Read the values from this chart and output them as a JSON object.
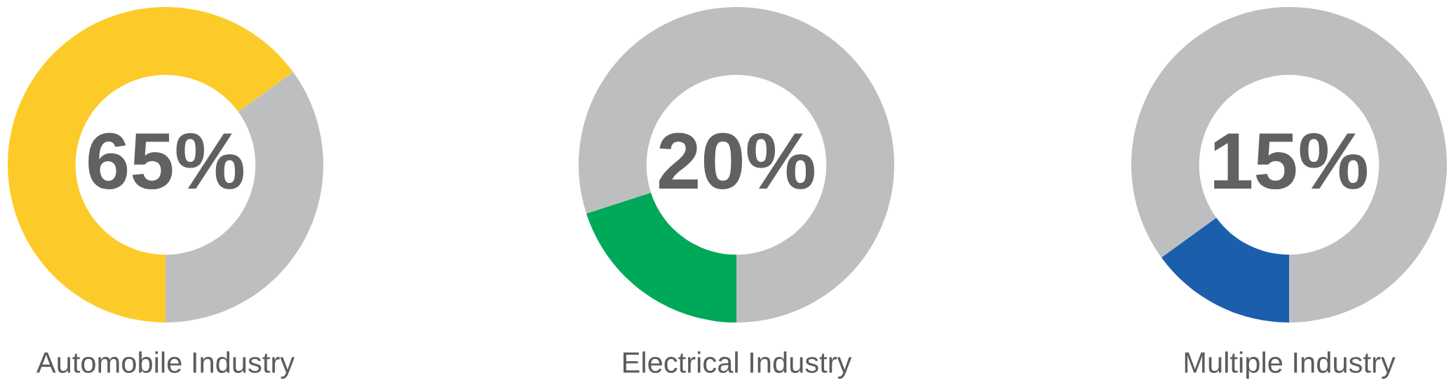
{
  "chart_data": [
    {
      "type": "donut",
      "title": "Automobile Industry",
      "categories": [
        null,
        null
      ],
      "values": [
        65,
        35
      ],
      "colors": [
        "#fdcb29",
        "#bdbec0"
      ],
      "annotations": [
        "65%"
      ]
    },
    {
      "type": "donut",
      "title": "Electrical Industry",
      "categories": [
        null,
        null
      ],
      "values": [
        20,
        80
      ],
      "colors": [
        "#00a859",
        "#bdbec0"
      ],
      "annotations": [
        "20%"
      ]
    },
    {
      "type": "donut",
      "title": "Multiple Industry",
      "categories": [
        null,
        null
      ],
      "values": [
        15,
        85
      ],
      "colors": [
        "#1b5eab",
        "#bdbec0"
      ],
      "annotations": [
        "15%"
      ]
    }
  ]
}
